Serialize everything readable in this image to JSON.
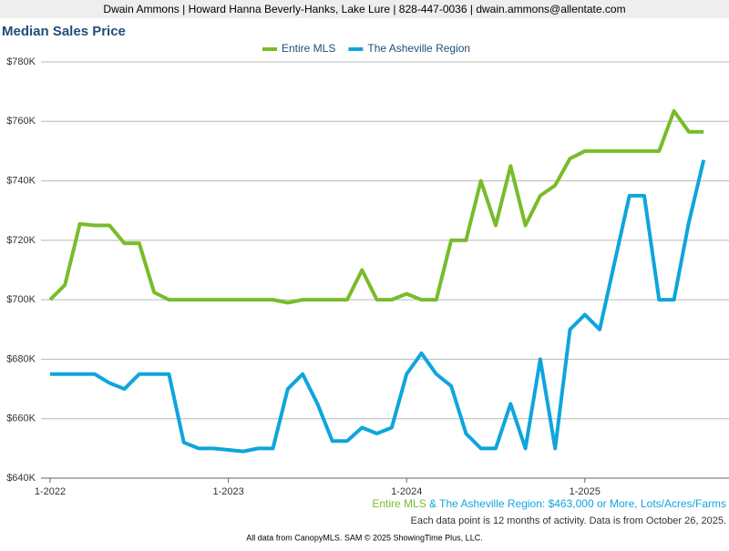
{
  "header": "Dwain Ammons | Howard Hanna Beverly-Hanks, Lake Lure | 828-447-0036 | dwain.ammons@allentate.com",
  "chart_data": {
    "type": "line",
    "title": "Median Sales Price",
    "categories": [
      "1-2022",
      null,
      null,
      null,
      null,
      null,
      null,
      null,
      null,
      null,
      null,
      null,
      "1-2023",
      null,
      null,
      null,
      null,
      null,
      null,
      null,
      null,
      null,
      null,
      null,
      "1-2024",
      null,
      null,
      null,
      null,
      null,
      null,
      null,
      null,
      null,
      null,
      null,
      "1-2025",
      null,
      null,
      null,
      null,
      null,
      null,
      null,
      null
    ],
    "series": [
      {
        "name": "Entire MLS",
        "color": "#78bc2a",
        "values": [
          700000,
          705000,
          725500,
          725000,
          725000,
          719000,
          719000,
          702500,
          700000,
          700000,
          700000,
          700000,
          700000,
          700000,
          700000,
          700000,
          699000,
          700000,
          700000,
          700000,
          700000,
          710000,
          700000,
          700000,
          702000,
          700000,
          700000,
          720000,
          720000,
          740000,
          725000,
          745000,
          725000,
          735000,
          738500,
          747500,
          750000,
          750000,
          750000,
          750000,
          750000,
          750000,
          763500,
          756500,
          756500
        ]
      },
      {
        "name": "The Asheville Region",
        "color": "#0ea5dc",
        "values": [
          675000,
          675000,
          675000,
          675000,
          672000,
          670000,
          675000,
          675000,
          675000,
          652000,
          650000,
          650000,
          649500,
          649000,
          650000,
          650000,
          670000,
          675000,
          665000,
          652500,
          652500,
          657000,
          655000,
          657000,
          675000,
          682000,
          675000,
          671000,
          655000,
          650000,
          650000,
          665000,
          650000,
          680000,
          650000,
          690000,
          695000,
          690000,
          712500,
          735000,
          735000,
          700000,
          700000,
          726000,
          747000
        ]
      }
    ],
    "ylim": [
      640000,
      780000
    ],
    "yticks": [
      {
        "value": 640000,
        "label": "$640K"
      },
      {
        "value": 660000,
        "label": "$660K"
      },
      {
        "value": 680000,
        "label": "$680K"
      },
      {
        "value": 700000,
        "label": "$700K"
      },
      {
        "value": 720000,
        "label": "$720K"
      },
      {
        "value": 740000,
        "label": "$740K"
      },
      {
        "value": 760000,
        "label": "$760K"
      },
      {
        "value": 780000,
        "label": "$780K"
      }
    ],
    "grid": true,
    "legend": "top",
    "filter_note": "& The Asheville Region: $463,000 or More, Lots/Acres/Farms",
    "caption": "Each data point is 12 months of activity. Data is from October 26, 2025.",
    "source": "All data from CanopyMLS. SAM © 2025 ShowingTime Plus, LLC."
  }
}
